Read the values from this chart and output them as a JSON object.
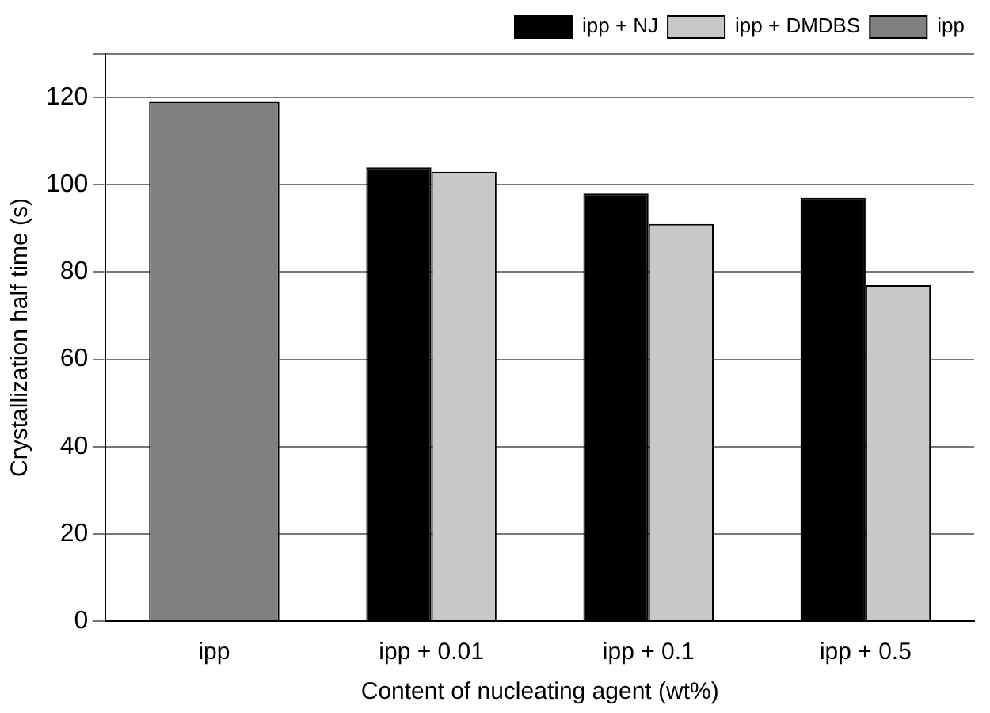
{
  "chart_data": {
    "type": "bar",
    "xlabel": "Content of nucleating agent (wt%)",
    "ylabel": "Crystallization half time (s)",
    "categories": [
      "ipp",
      "ipp + 0.01",
      "ipp + 0.1",
      "ipp + 0.5"
    ],
    "series": [
      {
        "name": "ipp + NJ",
        "color": "#000000",
        "values": [
          null,
          104,
          98,
          97
        ]
      },
      {
        "name": "ipp + DMDBS",
        "color": "#c8c8c8",
        "values": [
          null,
          103,
          91,
          77
        ]
      },
      {
        "name": "ipp",
        "color": "#808080",
        "values": [
          119,
          null,
          null,
          null
        ]
      }
    ],
    "ylim": [
      0,
      130
    ],
    "yticks": [
      0,
      20,
      40,
      60,
      80,
      100,
      120,
      {
        "value": 130,
        "label": null
      }
    ],
    "grid": "y",
    "legend": "top right"
  }
}
